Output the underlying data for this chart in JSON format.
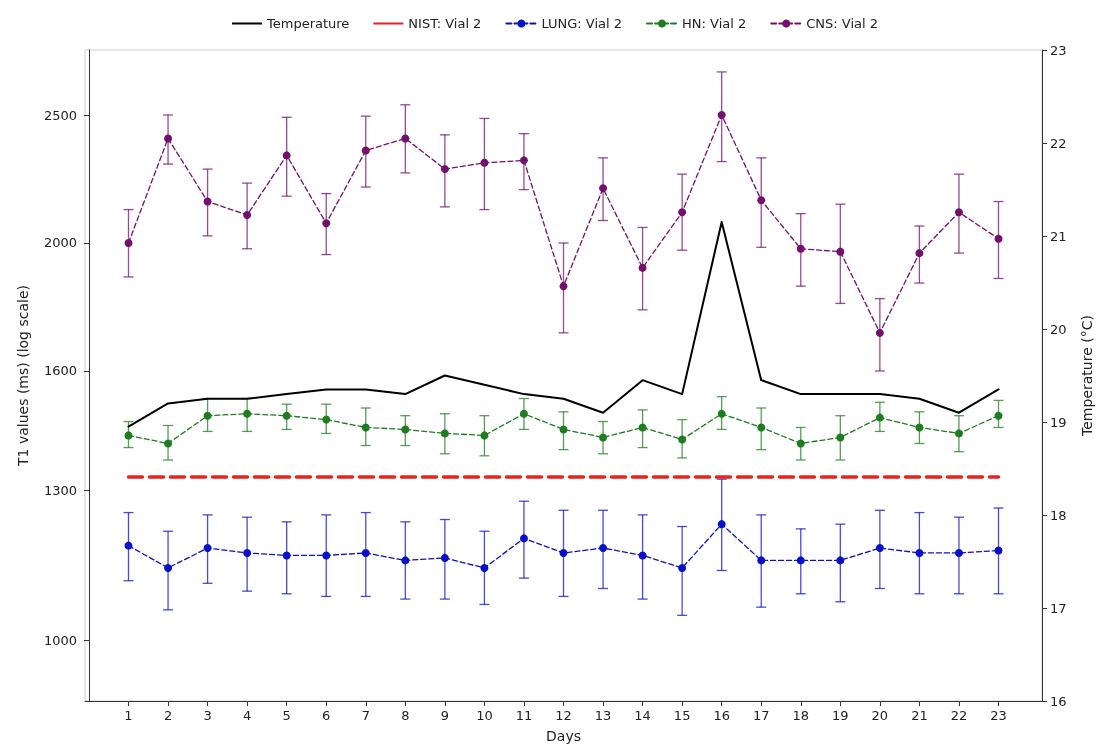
{
  "chart_data": {
    "type": "line",
    "xlabel": "Days",
    "ylabel": "T1 values (ms) (log scale)",
    "y2label": "Temperature (°C)",
    "x": [
      1,
      2,
      3,
      4,
      5,
      6,
      7,
      8,
      9,
      10,
      11,
      12,
      13,
      14,
      15,
      16,
      17,
      18,
      19,
      20,
      21,
      22,
      23
    ],
    "xlim": [
      -0.1,
      24.1
    ],
    "xticks": [
      1,
      2,
      3,
      4,
      5,
      6,
      7,
      8,
      9,
      10,
      11,
      12,
      13,
      14,
      15,
      16,
      17,
      18,
      19,
      20,
      21,
      22,
      23
    ],
    "log": "y",
    "ylim": [
      900,
      2800
    ],
    "yticks": [
      1000,
      1300,
      1600,
      2000,
      2500
    ],
    "y2lim": [
      16,
      23
    ],
    "y2ticks": [
      16,
      17,
      18,
      19,
      20,
      21,
      22,
      23
    ],
    "grid": false,
    "legend": "top",
    "series": [
      {
        "name": "Temperature",
        "color": "#000000",
        "axis": "y2",
        "marker": "none",
        "line_style": "solid",
        "values": [
          18.95,
          19.2,
          19.25,
          19.25,
          19.3,
          19.35,
          19.35,
          19.3,
          19.5,
          19.4,
          19.3,
          19.25,
          19.1,
          19.45,
          19.3,
          21.15,
          19.45,
          19.3,
          19.3,
          19.3,
          19.25,
          19.1,
          19.35
        ]
      },
      {
        "name": "NIST: Vial 2",
        "color": "#e8231f",
        "marker": "none",
        "line_style": "dashed",
        "values": [
          1330,
          1330,
          1330,
          1330,
          1330,
          1330,
          1330,
          1330,
          1330,
          1330,
          1330,
          1330,
          1330,
          1330,
          1330,
          1330,
          1330,
          1330,
          1330,
          1330,
          1330,
          1330,
          1330
        ]
      },
      {
        "name": "LUNG: Vial 2",
        "color": "#0a10c8",
        "marker": "circle",
        "line_style": "dashed",
        "values": [
          1180,
          1135,
          1175,
          1165,
          1160,
          1160,
          1165,
          1150,
          1155,
          1135,
          1195,
          1165,
          1175,
          1160,
          1135,
          1225,
          1150,
          1150,
          1150,
          1175,
          1165,
          1165,
          1170
        ],
        "errors": [
          [
            1110,
            1250
          ],
          [
            1055,
            1210
          ],
          [
            1105,
            1245
          ],
          [
            1090,
            1240
          ],
          [
            1085,
            1230
          ],
          [
            1080,
            1245
          ],
          [
            1080,
            1250
          ],
          [
            1075,
            1230
          ],
          [
            1075,
            1235
          ],
          [
            1065,
            1210
          ],
          [
            1115,
            1275
          ],
          [
            1080,
            1255
          ],
          [
            1095,
            1255
          ],
          [
            1075,
            1245
          ],
          [
            1045,
            1220
          ],
          [
            1130,
            1325
          ],
          [
            1060,
            1245
          ],
          [
            1085,
            1215
          ],
          [
            1070,
            1225
          ],
          [
            1095,
            1255
          ],
          [
            1085,
            1250
          ],
          [
            1085,
            1240
          ],
          [
            1085,
            1260
          ]
        ]
      },
      {
        "name": "HN: Vial 2",
        "color": "#1e7d1e",
        "marker": "circle",
        "line_style": "dashed",
        "values": [
          1430,
          1410,
          1480,
          1485,
          1480,
          1470,
          1450,
          1445,
          1435,
          1430,
          1485,
          1445,
          1425,
          1450,
          1420,
          1485,
          1450,
          1410,
          1425,
          1475,
          1450,
          1435,
          1480
        ],
        "errors": [
          [
            1400,
            1465
          ],
          [
            1370,
            1455
          ],
          [
            1440,
            1525
          ],
          [
            1440,
            1525
          ],
          [
            1445,
            1510
          ],
          [
            1435,
            1510
          ],
          [
            1405,
            1500
          ],
          [
            1405,
            1480
          ],
          [
            1385,
            1485
          ],
          [
            1380,
            1480
          ],
          [
            1445,
            1525
          ],
          [
            1395,
            1490
          ],
          [
            1385,
            1465
          ],
          [
            1400,
            1495
          ],
          [
            1375,
            1470
          ],
          [
            1445,
            1530
          ],
          [
            1395,
            1500
          ],
          [
            1370,
            1450
          ],
          [
            1370,
            1480
          ],
          [
            1440,
            1515
          ],
          [
            1410,
            1490
          ],
          [
            1390,
            1480
          ],
          [
            1450,
            1520
          ]
        ]
      },
      {
        "name": "CNS: Vial 2",
        "color": "#73106e",
        "marker": "circle",
        "line_style": "dashed",
        "values": [
          2000,
          2400,
          2150,
          2100,
          2330,
          2070,
          2350,
          2400,
          2275,
          2300,
          2310,
          1855,
          2200,
          1915,
          2110,
          2500,
          2155,
          1980,
          1970,
          1710,
          1965,
          2110,
          2015
        ],
        "errors": [
          [
            1885,
            2120
          ],
          [
            2295,
            2500
          ],
          [
            2025,
            2275
          ],
          [
            1980,
            2220
          ],
          [
            2170,
            2490
          ],
          [
            1960,
            2180
          ],
          [
            2205,
            2495
          ],
          [
            2260,
            2545
          ],
          [
            2130,
            2415
          ],
          [
            2120,
            2485
          ],
          [
            2195,
            2420
          ],
          [
            1710,
            2000
          ],
          [
            2080,
            2320
          ],
          [
            1780,
            2055
          ],
          [
            1975,
            2255
          ],
          [
            2305,
            2695
          ],
          [
            1985,
            2320
          ],
          [
            1855,
            2105
          ],
          [
            1800,
            2140
          ],
          [
            1600,
            1815
          ],
          [
            1865,
            2060
          ],
          [
            1965,
            2255
          ],
          [
            1880,
            2150
          ]
        ]
      }
    ]
  }
}
